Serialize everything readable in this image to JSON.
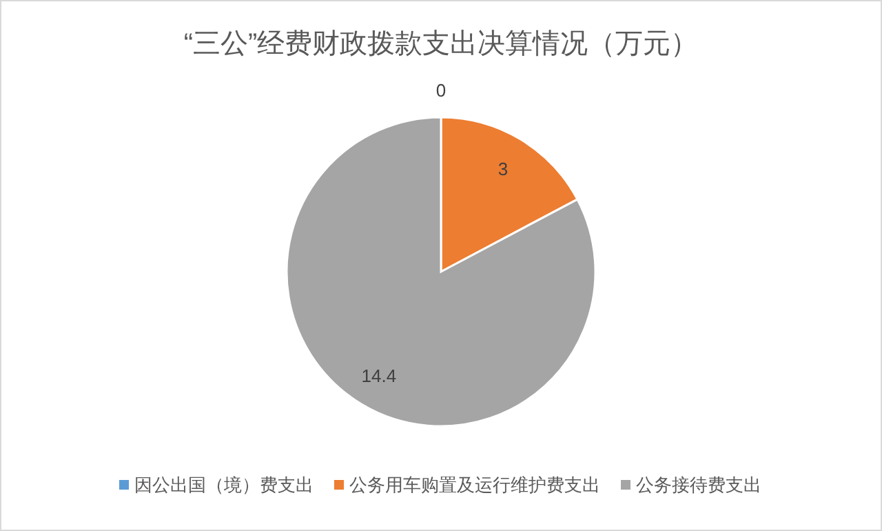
{
  "chart_data": {
    "type": "pie",
    "title": "“三公”经费财政拨款支出决算情况（万元）",
    "categories": [
      "因公出国（境）费支出",
      "公务用车购置及运行维护费支出",
      "公务接待费支出"
    ],
    "values": [
      0,
      3,
      14.4
    ],
    "colors": [
      "#5b9bd5",
      "#ed7d31",
      "#a5a5a5"
    ],
    "value_labels": [
      "0",
      "3",
      "14.4"
    ],
    "legend": "bottom"
  }
}
